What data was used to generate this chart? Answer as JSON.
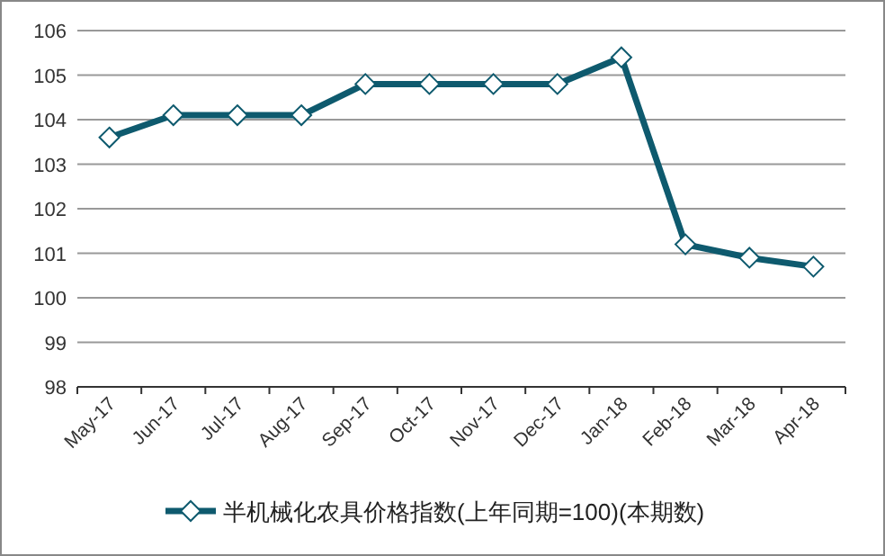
{
  "chart_data": {
    "type": "line",
    "categories": [
      "May-17",
      "Jun-17",
      "Jul-17",
      "Aug-17",
      "Sep-17",
      "Oct-17",
      "Nov-17",
      "Dec-17",
      "Jan-18",
      "Feb-18",
      "Mar-18",
      "Apr-18"
    ],
    "series": [
      {
        "name": "半机械化农具价格指数(上年同期=100)(本期数)",
        "color": "#0e5a6e",
        "values": [
          103.6,
          104.1,
          104.1,
          104.1,
          104.8,
          104.8,
          104.8,
          104.8,
          105.4,
          101.2,
          100.9,
          100.7
        ]
      }
    ],
    "ylim": [
      98,
      106
    ],
    "yticks": [
      98,
      99,
      100,
      101,
      102,
      103,
      104,
      105,
      106
    ],
    "grid": "y",
    "legend": "bottom",
    "marker": "diamond",
    "line_style": "solid"
  }
}
